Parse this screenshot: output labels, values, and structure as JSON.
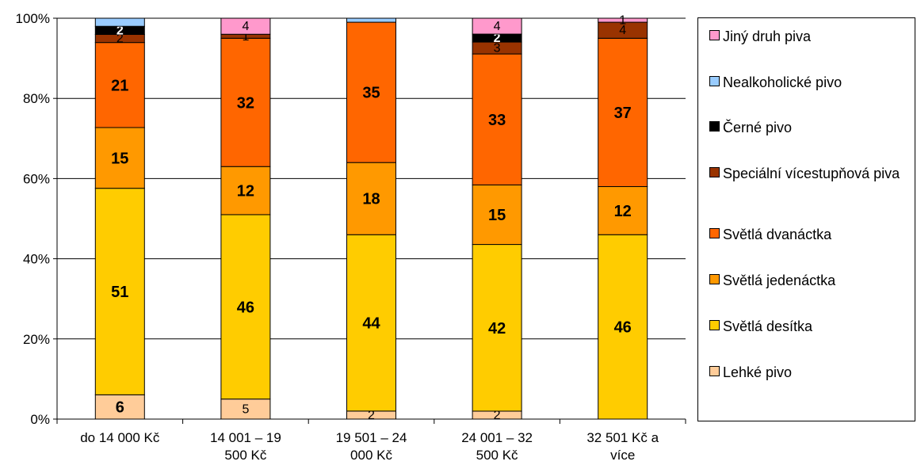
{
  "chart_data": {
    "type": "bar",
    "stacked": "percent",
    "categories": [
      "do 14 000 Kč",
      "14 001 – 19 500 Kč",
      "19 501 – 24 000 Kč",
      "24 001 – 32 500 Kč",
      "32 501 Kč a více"
    ],
    "series": [
      {
        "name": "Lehké pivo",
        "color": "#FFCC99",
        "values": [
          6,
          5,
          2,
          2,
          0
        ]
      },
      {
        "name": "Světlá desítka",
        "color": "#FFCC00",
        "values": [
          51,
          46,
          44,
          42,
          46
        ]
      },
      {
        "name": "Světlá jedenáctka",
        "color": "#FF9900",
        "values": [
          15,
          12,
          18,
          15,
          12
        ]
      },
      {
        "name": "Světlá dvanáctka",
        "color": "#FF6600",
        "values": [
          21,
          32,
          35,
          33,
          37
        ]
      },
      {
        "name": "Speciální vícestupňová piva",
        "color": "#993300",
        "values": [
          2,
          1,
          0,
          3,
          4
        ]
      },
      {
        "name": "Černé pivo",
        "color": "#000000",
        "values": [
          2,
          0,
          0,
          2,
          0
        ]
      },
      {
        "name": "Nealkoholické pivo",
        "color": "#99CCFF",
        "values": [
          2,
          0,
          1,
          0,
          0
        ]
      },
      {
        "name": "Jiný druh piva",
        "color": "#FF99CC",
        "values": [
          0,
          4,
          0,
          4,
          1
        ]
      }
    ],
    "data_labels": [
      [
        "6",
        "51",
        "15",
        "21",
        "2",
        "2",
        "",
        ""
      ],
      [
        "5",
        "46",
        "12",
        "32",
        "1",
        "",
        "",
        "4"
      ],
      [
        "2",
        "44",
        "18",
        "35",
        "",
        "",
        "",
        ""
      ],
      [
        "2",
        "42",
        "15",
        "33",
        "3",
        "2",
        "",
        "4"
      ],
      [
        "",
        "46",
        "12",
        "37",
        "4",
        "",
        "",
        "1"
      ]
    ],
    "yticks": [
      "0%",
      "20%",
      "40%",
      "60%",
      "80%",
      "100%"
    ],
    "ylim": [
      0,
      100
    ],
    "grid": true,
    "legend_position": "right"
  }
}
